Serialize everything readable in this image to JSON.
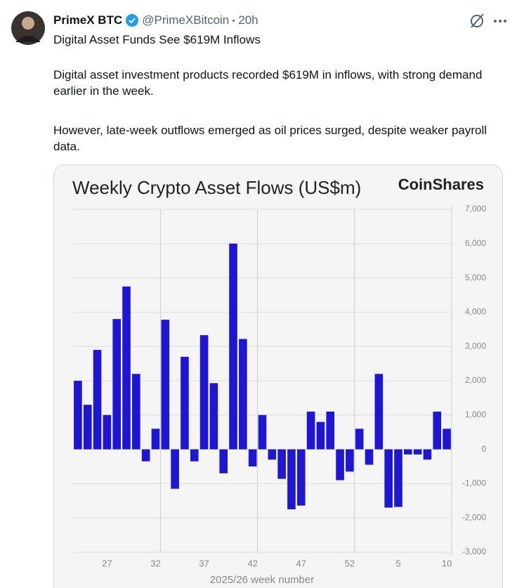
{
  "tweet": {
    "name": "PrimeX BTC",
    "handle": "@PrimeXBitcoin",
    "time": "20h",
    "headline": "Digital Asset Funds See $619M Inflows",
    "paragraphs": [
      "Digital asset investment products recorded $619M in inflows, with strong demand earlier in the week.",
      "However, late-week outflows emerged as oil prices surged, despite weaker payroll data."
    ]
  },
  "chart_data": {
    "type": "bar",
    "title": "Weekly Crypto Asset Flows (US$m)",
    "logo": "CoinShares",
    "x_label": "2025/26 week number",
    "categories": [
      null,
      null,
      null,
      "27",
      null,
      null,
      null,
      null,
      "32",
      null,
      null,
      null,
      null,
      "37",
      null,
      null,
      null,
      null,
      "42",
      null,
      null,
      null,
      null,
      "47",
      null,
      null,
      null,
      null,
      "52",
      null,
      null,
      null,
      null,
      "5",
      null,
      null,
      null,
      null,
      "10"
    ],
    "values": [
      2000,
      1300,
      2900,
      1000,
      3800,
      4750,
      2200,
      -350,
      600,
      3780,
      -1150,
      2700,
      -350,
      3330,
      1930,
      -700,
      6000,
      3220,
      -500,
      1000,
      -300,
      -860,
      -1750,
      -1640,
      1100,
      800,
      1100,
      -900,
      -650,
      600,
      -450,
      2200,
      -1700,
      -1680,
      -150,
      -150,
      -300,
      1100,
      600
    ],
    "color": "#1f16d4",
    "ylim": [
      -3000,
      7000
    ],
    "yticks": [
      {
        "value": -3000,
        "label": "-3,000"
      },
      {
        "value": -2000,
        "label": "-2,000"
      },
      {
        "value": -1000,
        "label": "-1,000"
      },
      0,
      {
        "value": 1000,
        "label": "1,000"
      },
      {
        "value": 2000,
        "label": "2,000"
      },
      {
        "value": 3000,
        "label": "3,000"
      },
      {
        "value": 4000,
        "label": "4,000"
      },
      {
        "value": 5000,
        "label": "5,000"
      },
      {
        "value": 6000,
        "label": "6,000"
      },
      {
        "value": 7000,
        "label": "7,000"
      }
    ],
    "grid": true
  }
}
